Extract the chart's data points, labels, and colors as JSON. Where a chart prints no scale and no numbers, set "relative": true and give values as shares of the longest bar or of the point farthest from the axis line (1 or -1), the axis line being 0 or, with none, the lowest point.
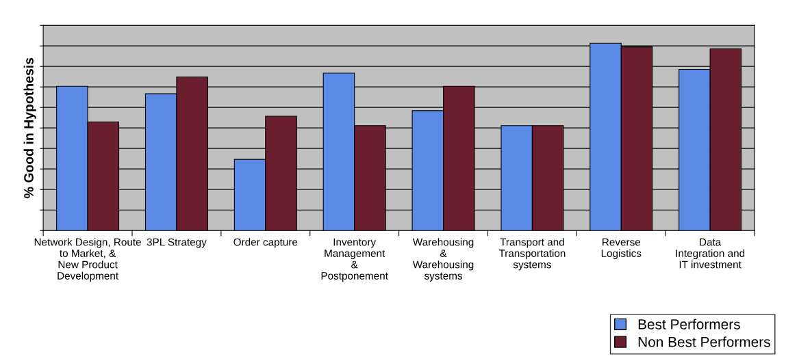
{
  "chart_data": {
    "type": "bar",
    "ylabel": "% Good in Hypothesis",
    "relative": true,
    "grid": "y",
    "legend": "bottom right",
    "categories": [
      "Network Design, Route\nto Market, &\nNew Product\nDevelopment",
      "3PL Strategy",
      "Order capture",
      "Inventory\nManagement\n&\nPostponement",
      "Warehousing\n&\nWarehousing\nsystems",
      "Transport and\nTransportation\nsystems",
      "Reverse\nLogistics",
      "Data\nIntegration and\nIT investment"
    ],
    "series": [
      {
        "name": "Best Performers",
        "color": "#5b8ae6",
        "values": [
          0.77,
          0.73,
          0.38,
          0.84,
          0.64,
          0.56,
          1,
          0.86
        ]
      },
      {
        "name": "Non Best Performers",
        "color": "#6b1e2e",
        "values": [
          0.58,
          0.82,
          0.61,
          0.56,
          0.77,
          0.56,
          0.98,
          0.97
        ]
      }
    ]
  }
}
